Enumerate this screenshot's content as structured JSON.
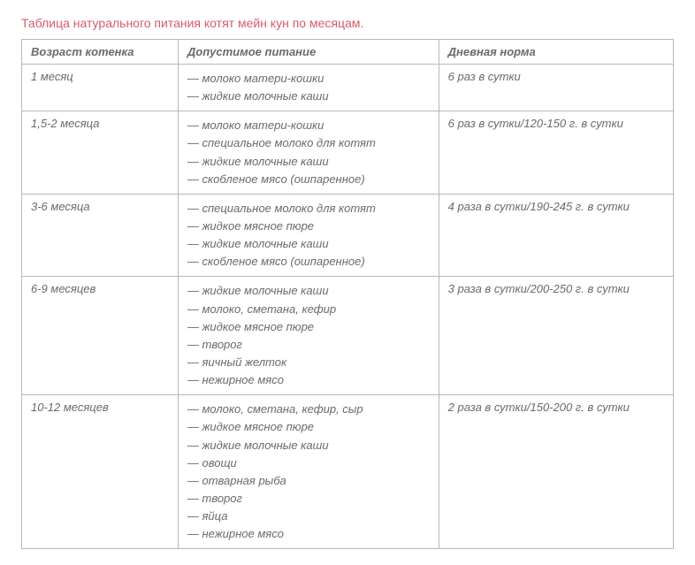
{
  "title": "Таблица натурального питания котят мейн кун по месяцам.",
  "title_color": "#d85a6a",
  "text_color": "#6a6a6a",
  "border_color": "#b8b8b8",
  "columns": [
    "Возраст котенка",
    "Допустимое питание",
    "Дневная норма"
  ],
  "dash": "— ",
  "rows": [
    {
      "age": "1 месяц",
      "foods": [
        "молоко матери-кошки",
        "жидкие молочные каши"
      ],
      "norm": "6 раз в сутки"
    },
    {
      "age": "1,5-2 месяца",
      "foods": [
        "молоко матери-кошки",
        "специальное молоко для котят",
        "жидкие молочные каши",
        "скобленое мясо (ошпаренное)"
      ],
      "norm": "6 раз в сутки/120-150 г. в сутки"
    },
    {
      "age": "3-6 месяца",
      "foods": [
        "специальное молоко для котят",
        "жидкое мясное пюре",
        "жидкие молочные каши",
        "скобленое мясо (ошпаренное)"
      ],
      "norm": "4 раза в сутки/190-245 г. в сутки"
    },
    {
      "age": "6-9 месяцев",
      "foods": [
        "жидкие молочные каши",
        "молоко, сметана, кефир",
        "жидкое мясное пюре",
        "творог",
        "яичный желток",
        "нежирное мясо"
      ],
      "norm": "3 раза в сутки/200-250 г. в сутки"
    },
    {
      "age": "10-12 месяцев",
      "foods": [
        "молоко, сметана, кефир, сыр",
        "жидкое мясное пюре",
        "жидкие молочные каши",
        "овощи",
        "отварная рыба",
        "творог",
        "яйца",
        "нежирное мясо"
      ],
      "norm": "2 раза в сутки/150-200 г. в сутки"
    }
  ]
}
